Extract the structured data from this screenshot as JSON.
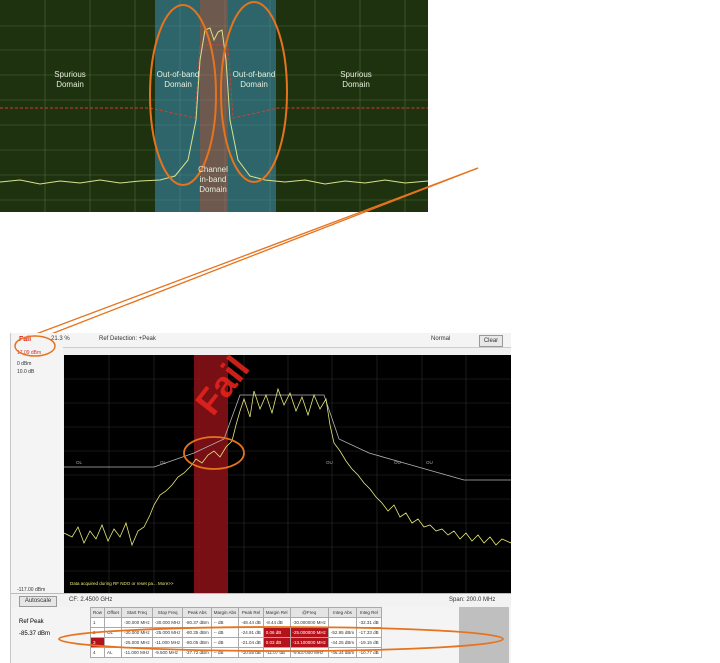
{
  "top_panel": {
    "labels": {
      "spurious_left": "Spurious\nDomain",
      "oob_left": "Out-of-band\nDomain",
      "oob_right": "Out-of-band\nDomain",
      "spurious_right": "Spurious\nDomain",
      "channel": "Channel\nin-band\nDomain"
    }
  },
  "header": {
    "fail": "Fail",
    "pct": "21.3 %",
    "ref_detection": "Ref Detection: +Peak",
    "mode": "Normal",
    "clear": "Clear"
  },
  "left_info": {
    "ref_level": "17.09 dBm",
    "ref_offset": "0 dBm",
    "scale": "10.0 dB",
    "bottom_level": "-117.00 dBm"
  },
  "spectrum": {
    "overlay_text": "Fail",
    "status_msg": "Data acquired during RF NDO or reset pa... More>>",
    "seg_labels": [
      "OL",
      "OL",
      "OU",
      "OU",
      "OU"
    ],
    "center_label": "",
    "colors": {
      "trace": "#e5e879",
      "mask": "#b4b4b4",
      "highlight": "#8c1218",
      "annotation": "#e6731e"
    }
  },
  "bottom_bar": {
    "autoscale": "Autoscale",
    "cf": "CF: 2.4500 GHz",
    "span": "Span: 200.0 MHz"
  },
  "table": {
    "ref_peak_label": "Ref Peak",
    "ref_peak_value": "-85.37 dBm",
    "headers": [
      "Row",
      "Offset",
      "Start Freq",
      "Stop Freq",
      "Peak Abs",
      "Margin Abs",
      "Peak Rel",
      "Margin Rel",
      "@Freq",
      "Integ Abs",
      "Integ Rel"
    ],
    "rows": [
      [
        "1",
        "",
        "-30.000 MHz",
        "-30.000 MHz",
        "-80.37 dBm",
        "-- dB",
        "-48.44 dB",
        "-8.44 dB",
        "-30.000000 MHz",
        "",
        "-32.31 dB"
      ],
      [
        "2",
        "OL",
        "-30.000 MHz",
        "-25.000 MHz",
        "-80.35 dBm",
        "-- dB",
        "-24.91 dB",
        "0.06 dB",
        "-25.000000 MHz",
        "-52.95 dBm",
        "-17.33 dB"
      ],
      [
        "3",
        "",
        "-25.000 MHz",
        "-11.000 MHz",
        "-80.05 dBm",
        "-- dB",
        "-21.04 dB",
        "0.03 dB",
        "-13.100000 MHz",
        "-44.25 dBm",
        "-19.15 dB"
      ],
      [
        "4",
        "AL",
        "-11.000 MHz",
        "-9.500 MHz",
        "-37.72 dBm",
        "-- dB",
        "-10.55 dB",
        "-11.07 dB",
        "-9.637000 MHz",
        "-46.34 dBm",
        "-10.77 dB"
      ]
    ]
  }
}
